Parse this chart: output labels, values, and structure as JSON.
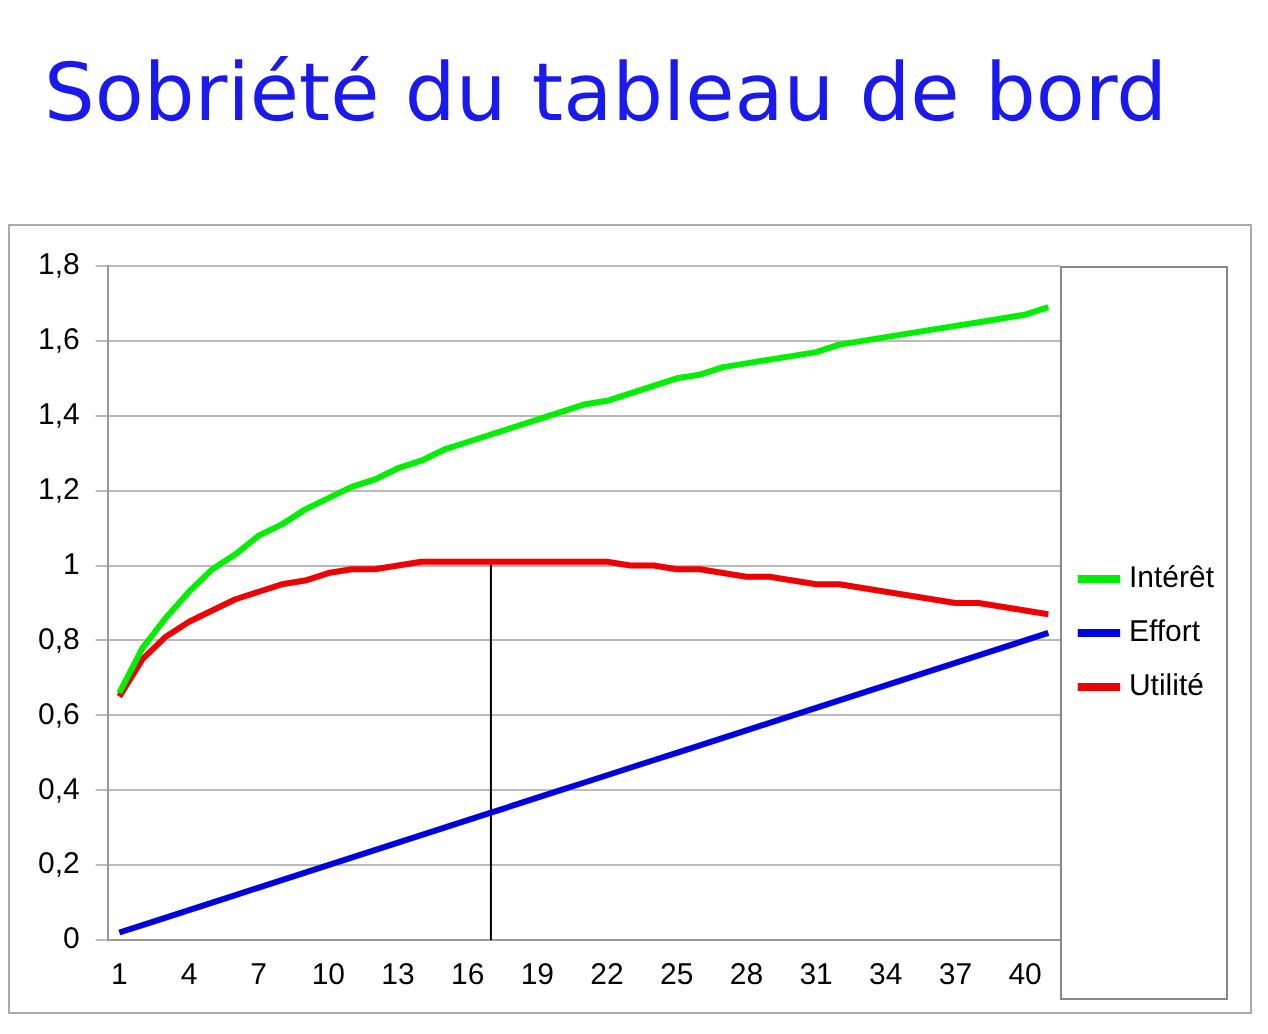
{
  "chart_data": {
    "type": "line",
    "title": "Sobriété du tableau de bord",
    "x": [
      1,
      2,
      3,
      4,
      5,
      6,
      7,
      8,
      9,
      10,
      11,
      12,
      13,
      14,
      15,
      16,
      17,
      18,
      19,
      20,
      21,
      22,
      23,
      24,
      25,
      26,
      27,
      28,
      29,
      30,
      31,
      32,
      33,
      34,
      35,
      36,
      37,
      38,
      39,
      40,
      41
    ],
    "xlim": [
      0.5,
      41.5
    ],
    "xticks": [
      1,
      4,
      7,
      10,
      13,
      16,
      19,
      22,
      25,
      28,
      31,
      34,
      37,
      40
    ],
    "ylim": [
      0,
      1.8
    ],
    "yticks": [
      0,
      {
        "value": 0.2,
        "label": "0,2"
      },
      {
        "value": 0.4,
        "label": "0,4"
      },
      {
        "value": 0.6,
        "label": "0,6"
      },
      {
        "value": 0.8,
        "label": "0,8"
      },
      1,
      {
        "value": 1.2,
        "label": "1,2"
      },
      {
        "value": 1.4,
        "label": "1,4"
      },
      {
        "value": 1.6,
        "label": "1,6"
      },
      {
        "value": 1.8,
        "label": "1,8"
      }
    ],
    "grid": "y",
    "legend": "right",
    "marker": "none",
    "line_style": "solid",
    "series": [
      {
        "name": "Intérêt",
        "color": "#00ee00",
        "values": [
          0.66,
          0.78,
          0.86,
          0.93,
          0.99,
          1.03,
          1.08,
          1.11,
          1.15,
          1.18,
          1.21,
          1.23,
          1.26,
          1.28,
          1.31,
          1.33,
          1.35,
          1.37,
          1.39,
          1.41,
          1.43,
          1.44,
          1.46,
          1.48,
          1.5,
          1.51,
          1.53,
          1.54,
          1.55,
          1.56,
          1.57,
          1.59,
          1.6,
          1.61,
          1.62,
          1.63,
          1.64,
          1.65,
          1.66,
          1.67,
          1.69
        ]
      },
      {
        "name": "Effort",
        "color": "#0000dd",
        "values": [
          0.02,
          0.04,
          0.06,
          0.08,
          0.1,
          0.12,
          0.14,
          0.16,
          0.18,
          0.2,
          0.22,
          0.24,
          0.26,
          0.28,
          0.3,
          0.32,
          0.34,
          0.36,
          0.38,
          0.4,
          0.42,
          0.44,
          0.46,
          0.48,
          0.5,
          0.52,
          0.54,
          0.56,
          0.58,
          0.6,
          0.62,
          0.64,
          0.66,
          0.68,
          0.7,
          0.72,
          0.74,
          0.76,
          0.78,
          0.8,
          0.82
        ]
      },
      {
        "name": "Utilité",
        "color": "#ee0000",
        "values": [
          0.65,
          0.75,
          0.81,
          0.85,
          0.88,
          0.91,
          0.93,
          0.95,
          0.96,
          0.98,
          0.99,
          0.99,
          1.0,
          1.01,
          1.01,
          1.01,
          1.01,
          1.01,
          1.01,
          1.01,
          1.01,
          1.01,
          1.0,
          1.0,
          0.99,
          0.99,
          0.98,
          0.97,
          0.97,
          0.96,
          0.95,
          0.95,
          0.94,
          0.93,
          0.92,
          0.91,
          0.9,
          0.9,
          0.89,
          0.88,
          0.87
        ]
      },
      {
        "color": "#000000",
        "x": [
          17,
          17
        ],
        "values": [
          0,
          1.01
        ]
      }
    ]
  }
}
